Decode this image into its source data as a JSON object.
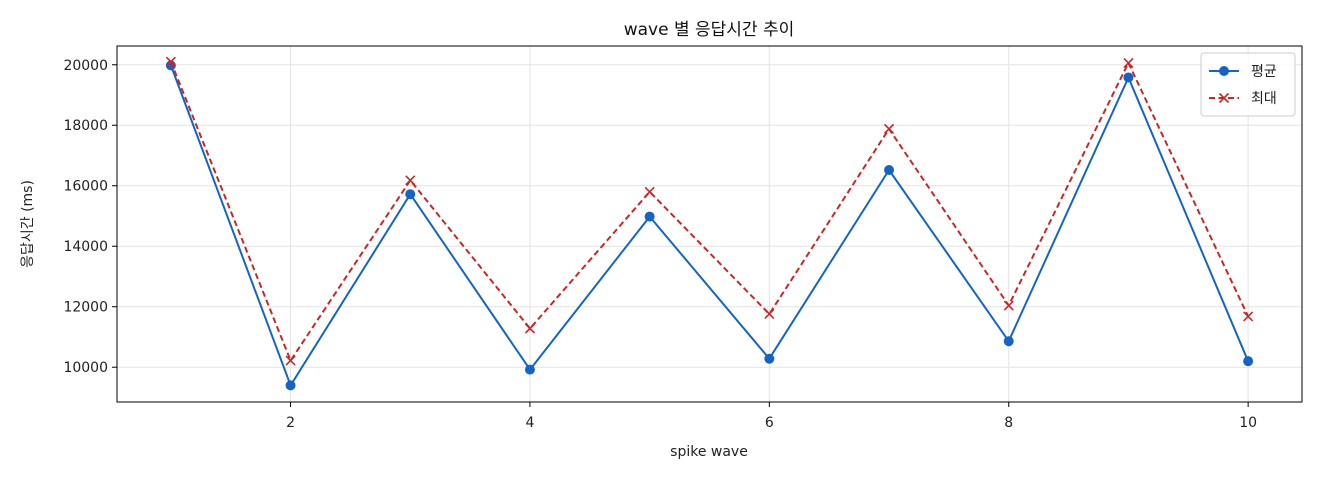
{
  "chart_data": {
    "type": "line",
    "title": "wave 별 응답시간 추이",
    "xlabel": "spike wave",
    "ylabel": "응답시간 (ms)",
    "x": [
      1,
      2,
      3,
      4,
      5,
      6,
      7,
      8,
      9,
      10
    ],
    "xlim": [
      0.55,
      10.45
    ],
    "ylim": [
      8850,
      20620
    ],
    "xticks": [
      2,
      4,
      6,
      8,
      10
    ],
    "yticks": [
      10000,
      12000,
      14000,
      16000,
      18000,
      20000
    ],
    "grid": true,
    "legend_position": "top-right",
    "series": [
      {
        "name": "평균",
        "color": "#1565c0",
        "line_style": "solid",
        "marker": "circle",
        "values": [
          19980,
          9400,
          15720,
          9920,
          14980,
          10280,
          16520,
          10860,
          19580,
          10200
        ]
      },
      {
        "name": "최대",
        "color": "#c62828",
        "line_style": "dashed",
        "marker": "x",
        "values": [
          20100,
          10220,
          16180,
          11280,
          15800,
          11760,
          17880,
          12040,
          20060,
          11680
        ]
      }
    ]
  }
}
